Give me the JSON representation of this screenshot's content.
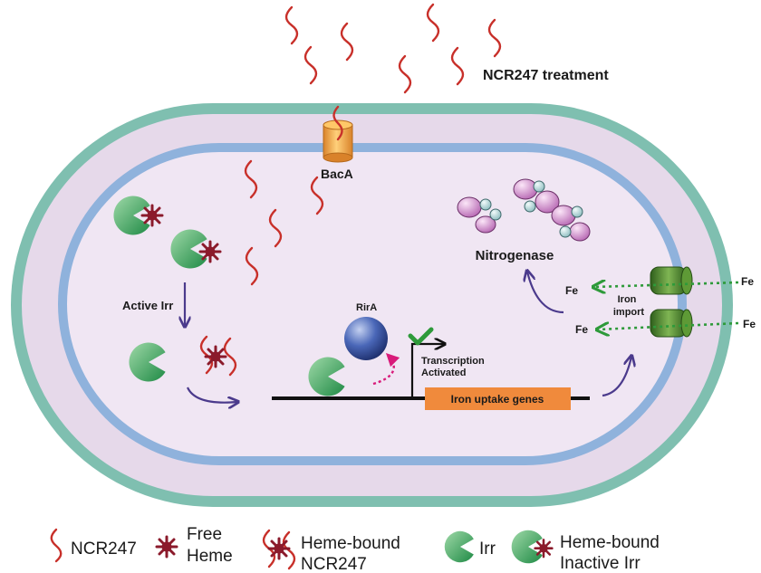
{
  "labels": {
    "treatment": "NCR247 treatment",
    "transporter": "BacA",
    "enzyme": "Nitrogenase",
    "active_irr": "Active Irr",
    "repressor": "RirA",
    "transcription_line1": "Transcription",
    "transcription_line2": "Activated",
    "genes": "Iron uptake genes",
    "iron_import_line1": "Iron",
    "iron_import_line2": "import",
    "fe_outer_top": "Fe",
    "fe_inner_top": "Fe",
    "fe_outer_bottom": "Fe",
    "fe_inner_bottom": "Fe"
  },
  "legend": {
    "ncr247": "NCR247",
    "free_heme_line1": "Free",
    "free_heme_line2": "Heme",
    "heme_ncr_line1": "Heme-bound",
    "heme_ncr_line2": "NCR247",
    "irr": "Irr",
    "heme_irr_line1": "Heme-bound",
    "heme_irr_line2": "Inactive Irr"
  },
  "colors": {
    "outer_membrane": "#7fbfb0",
    "periplasm": "#e6d9ea",
    "inner_membrane": "#8fb2dc",
    "cytoplasm": "#f0e6f3",
    "peptide": "#c8302a",
    "heme": "#8b1a2b",
    "irr": "#3aaa5a",
    "rira": "#2f4e9e",
    "gene_box": "#f08a3c",
    "iron_arrow": "#2e9a3a",
    "process_arrow": "#4b3a8c",
    "nitrogenase_purple": "#c77ac2",
    "nitrogenase_teal": "#9cc7c9",
    "bacA": "#f5a53c",
    "channel": "#4d8a2e"
  }
}
